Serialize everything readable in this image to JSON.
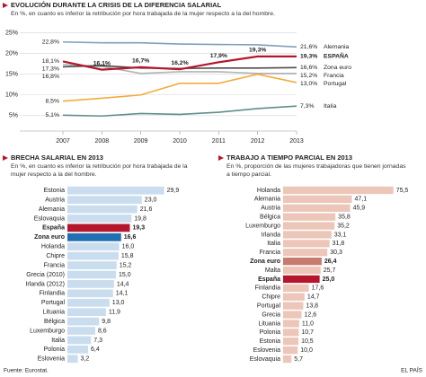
{
  "chart_data": [
    {
      "type": "line",
      "title": "EVOLUCIÓN DURANTE LA CRISIS DE LA DIFERENCIA SALARIAL",
      "subtitle": "En %, en cuanto es inferior la retribución por hora trabajada de la mujer respecto a la del hombre.",
      "categories": [
        "2007",
        "2008",
        "2009",
        "2010",
        "2011",
        "2012",
        "2013"
      ],
      "ylim": [
        3,
        26
      ],
      "yticks": [
        {
          "value": 25,
          "label": "25%"
        },
        {
          "value": 20,
          "label": "20%"
        },
        {
          "value": 15,
          "label": "15%"
        },
        {
          "value": 10,
          "label": "10%"
        },
        {
          "value": 5,
          "label": "5%"
        }
      ],
      "grid": true,
      "series": [
        {
          "name": "Alemania",
          "color": "#7f9fbd",
          "values": [
            22.8,
            22.6,
            22.6,
            22.3,
            22.2,
            22.1,
            21.6
          ],
          "value_labels": [
            "22,8%",
            null,
            null,
            null,
            null,
            null,
            "21,6%"
          ]
        },
        {
          "name": "Francia",
          "color": "#b3b3b3",
          "values": [
            17.3,
            16.9,
            15.2,
            15.6,
            15.6,
            15.2,
            15.2
          ],
          "value_labels": [
            "17,3%",
            null,
            null,
            null,
            null,
            null,
            "15,2%"
          ]
        },
        {
          "name": "Zona euro",
          "color": "#4d4d4d",
          "values": [
            16.8,
            17.1,
            16.5,
            16.4,
            16.5,
            16.5,
            16.6
          ],
          "value_labels": [
            "16,8%",
            null,
            null,
            null,
            null,
            null,
            "16,6%"
          ]
        },
        {
          "name": "Portugal",
          "color": "#f2ac3a",
          "values": [
            8.5,
            9.2,
            10.0,
            12.8,
            12.8,
            15.0,
            13.0
          ],
          "value_labels": [
            "8,5%",
            null,
            null,
            null,
            null,
            null,
            "13,0%"
          ]
        },
        {
          "name": "Italia",
          "color": "#5e8e8a",
          "values": [
            5.1,
            4.9,
            5.5,
            5.3,
            5.8,
            6.7,
            7.3
          ],
          "value_labels": [
            "5,1%",
            null,
            null,
            null,
            null,
            null,
            "7,3%"
          ]
        },
        {
          "name": "ESPAÑA",
          "color": "#b5162b",
          "values": [
            18.1,
            16.1,
            16.7,
            16.2,
            17.9,
            19.3,
            19.3
          ],
          "value_labels": [
            "18,1%",
            "16,1%",
            "16,7%",
            "16,2%",
            "17,9%",
            "19,3%",
            "19,3%"
          ]
        }
      ]
    },
    {
      "type": "barh",
      "title": "BRECHA SALARIAL EN 2013",
      "subtitle": "En %, en cuanto es inferior la retribución por hora trabajada de la mujer respecto a la del hombre.",
      "xlim": [
        0,
        30
      ],
      "categories": [
        "Estonia",
        "Austria",
        "Alemania",
        "Eslovaquia",
        "España",
        "Zona euro",
        "Holanda",
        "Chipre",
        "Francia",
        "Grecia (2010)",
        "Irlanda (2012)",
        "Finlandia",
        "Portugal",
        "Lituania",
        "Bélgica",
        "Luxemburgo",
        "Italia",
        "Polonia",
        "Eslovenia"
      ],
      "values": [
        29.9,
        23.0,
        21.6,
        19.8,
        19.3,
        16.6,
        16.0,
        15.8,
        15.2,
        15.0,
        14.4,
        14.1,
        13.0,
        11.9,
        9.8,
        8.6,
        7.3,
        6.4,
        3.2
      ],
      "value_labels": [
        "29,9",
        "23,0",
        "21,6",
        "19,8",
        "19,3",
        "16,6",
        "16,0",
        "15,8",
        "15,2",
        "15,0",
        "14,4",
        "14,1",
        "13,0",
        "11,9",
        "9,8",
        "8,6",
        "7,3",
        "6,4",
        "3,2"
      ],
      "colors": [
        "#c9ddef",
        "#c9ddef",
        "#c9ddef",
        "#c9ddef",
        "#b5162b",
        "#1f6fb2",
        "#c9ddef",
        "#c9ddef",
        "#c9ddef",
        "#c9ddef",
        "#c9ddef",
        "#c9ddef",
        "#c9ddef",
        "#c9ddef",
        "#c9ddef",
        "#c9ddef",
        "#c9ddef",
        "#c9ddef",
        "#c9ddef"
      ]
    },
    {
      "type": "barh",
      "title": "TRABAJO A TIEMPO PARCIAL EN 2013",
      "subtitle": "En %, proporción de las mujeres trabajadoras que tienen jornadas a tiempo parcial.",
      "xlim": [
        0,
        80
      ],
      "categories": [
        "Holanda",
        "Alemania",
        "Austria",
        "Bélgica",
        "Luxemburgo",
        "Irlanda",
        "Italia",
        "Francia",
        "Zona euro",
        "Malta",
        "España",
        "Finlandia",
        "Chipre",
        "Portugal",
        "Grecia",
        "Lituania",
        "Polonia",
        "Estonia",
        "Eslovenia",
        "Eslovaquia"
      ],
      "values": [
        75.5,
        47.1,
        45.9,
        35.8,
        35.2,
        33.1,
        31.8,
        30.3,
        26.4,
        25.7,
        25.0,
        17.6,
        14.7,
        13.8,
        12.6,
        11.0,
        10.7,
        10.5,
        10.0,
        5.7
      ],
      "value_labels": [
        "75,5",
        "47,1",
        "45,9",
        "35,8",
        "35,2",
        "33,1",
        "31,8",
        "30,3",
        "26,4",
        "25,7",
        "25,0",
        "17,6",
        "14,7",
        "13,8",
        "12,6",
        "11,0",
        "10,7",
        "10,5",
        "10,0",
        "5,7"
      ],
      "colors": [
        "#ecc6b8",
        "#ecc6b8",
        "#ecc6b8",
        "#ecc6b8",
        "#ecc6b8",
        "#ecc6b8",
        "#ecc6b8",
        "#ecc6b8",
        "#c67b6c",
        "#ecc6b8",
        "#b5162b",
        "#ecc6b8",
        "#ecc6b8",
        "#ecc6b8",
        "#ecc6b8",
        "#ecc6b8",
        "#ecc6b8",
        "#ecc6b8",
        "#ecc6b8",
        "#ecc6b8"
      ]
    }
  ],
  "source": "Fuente: Eurostat.",
  "credit": "EL PAÍS"
}
